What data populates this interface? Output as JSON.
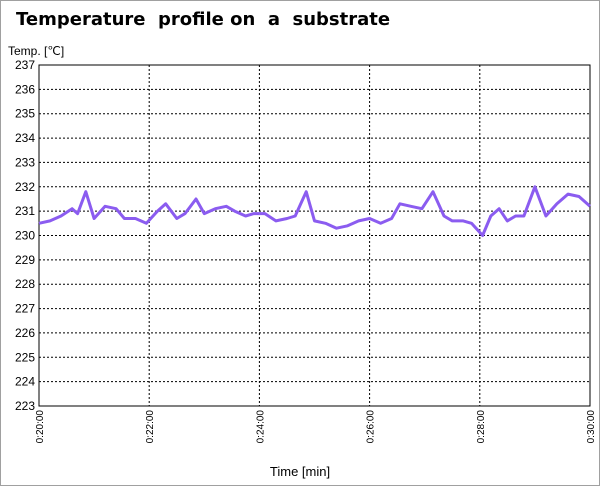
{
  "chart_data": {
    "type": "line",
    "title": "Temperature  profile on  a  substrate",
    "xlabel": "Time [min]",
    "ylabel": "Temp. [℃]",
    "ylim": [
      223,
      237
    ],
    "y_ticks": [
      "223",
      "224",
      "225",
      "226",
      "227",
      "228",
      "229",
      "230",
      "231",
      "232",
      "233",
      "234",
      "235",
      "236",
      "237"
    ],
    "x_range_min": [
      20,
      30
    ],
    "x_ticks": [
      "0:20:00",
      "0:22:00",
      "0:24:00",
      "0:26:00",
      "0:28:00",
      "0:30:00"
    ],
    "grid": true,
    "line_color": "#8b5cf0",
    "series": [
      {
        "x": [
          20.0,
          20.2,
          20.4,
          20.6,
          20.7,
          20.85,
          21.0,
          21.2,
          21.4,
          21.55,
          21.75,
          21.95,
          22.15,
          22.3,
          22.5,
          22.65,
          22.85,
          23.0,
          23.2,
          23.4,
          23.55,
          23.75,
          23.9,
          24.1,
          24.3,
          24.5,
          24.65,
          24.85,
          25.0,
          25.2,
          25.4,
          25.6,
          25.8,
          26.0,
          26.2,
          26.4,
          26.55,
          26.75,
          26.95,
          27.15,
          27.35,
          27.5,
          27.7,
          27.85,
          28.05,
          28.2,
          28.35,
          28.5,
          28.65,
          28.8,
          29.0,
          29.2,
          29.4,
          29.6,
          29.8,
          30.0
        ],
        "values": [
          230.5,
          230.6,
          230.8,
          231.1,
          230.9,
          231.8,
          230.7,
          231.2,
          231.1,
          230.7,
          230.7,
          230.5,
          231.0,
          231.3,
          230.7,
          230.9,
          231.5,
          230.9,
          231.1,
          231.2,
          231.0,
          230.8,
          230.9,
          230.9,
          230.6,
          230.7,
          230.8,
          231.8,
          230.6,
          230.5,
          230.3,
          230.4,
          230.6,
          230.7,
          230.5,
          230.7,
          231.3,
          231.2,
          231.1,
          231.8,
          230.8,
          230.6,
          230.6,
          230.5,
          230.0,
          230.8,
          231.1,
          230.6,
          230.8,
          230.8,
          232.0,
          230.8,
          231.3,
          231.7,
          231.6,
          231.2
        ]
      }
    ]
  }
}
